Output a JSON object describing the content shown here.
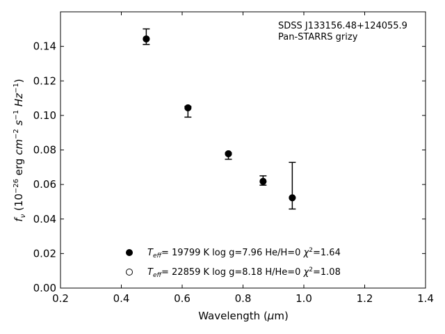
{
  "chart_data": {
    "type": "scatter",
    "xlabel": "Wavelength (μm)",
    "ylabel": "f_ν (10^-26 erg cm^-2 s^-1 Hz^-1)",
    "xlim": [
      0.2,
      1.4
    ],
    "ylim": [
      0.0,
      0.16
    ],
    "xticks": [
      "0.2",
      "0.4",
      "0.6",
      "0.8",
      "1.0",
      "1.2",
      "1.4"
    ],
    "yticks": [
      "0.00",
      "0.02",
      "0.04",
      "0.06",
      "0.08",
      "0.10",
      "0.12",
      "0.14"
    ],
    "grid": false,
    "annotation": {
      "line1": "SDSS J133156.48+124055.9",
      "line2": "Pan-STARRS grizy"
    },
    "observed": {
      "x": [
        0.482,
        0.619,
        0.752,
        0.866,
        0.962
      ],
      "y": [
        0.1456,
        0.1045,
        0.0778,
        0.0618,
        0.0593
      ],
      "yerr_low": [
        0.0045,
        0.0055,
        0.0032,
        0.0022,
        0.0135
      ],
      "yerr_high": [
        0.0045,
        0.0007,
        0.0005,
        0.0032,
        0.0135
      ]
    },
    "series": [
      {
        "marker": "filled-circle",
        "x": [
          0.482,
          0.619,
          0.752,
          0.866,
          0.962
        ],
        "y": [
          0.1443,
          0.1044,
          0.0778,
          0.0618,
          0.0523
        ]
      },
      {
        "marker": "open-circle",
        "x": [
          0.482,
          0.619,
          0.752,
          0.866,
          0.962
        ],
        "y": [
          0.1443,
          0.1044,
          0.0778,
          0.0618,
          0.0523
        ]
      }
    ],
    "legend": {
      "placement": "lower-center",
      "entries": [
        {
          "marker": "filled-circle",
          "label": "T_eff= 19799 K  log g=7.96  He/H=0  χ²=1.64"
        },
        {
          "marker": "open-circle",
          "label": "T_eff= 22859 K  log g=8.18  H/He=0  χ²=1.08"
        }
      ]
    }
  }
}
